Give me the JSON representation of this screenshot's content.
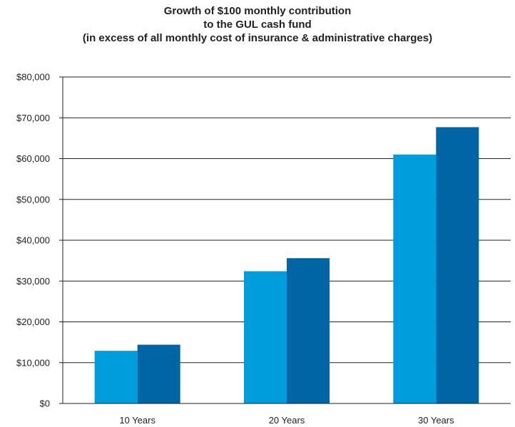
{
  "chart_data": {
    "type": "bar",
    "title_lines": [
      "Growth of $100 monthly contribution",
      "to the GUL cash fund",
      "(in excess of all monthly cost of insurance & administrative charges)"
    ],
    "categories": [
      "10 Years",
      "20 Years",
      "30 Years"
    ],
    "series": [
      {
        "values": [
          12900,
          32400,
          61000
        ],
        "color": "#009ddc"
      },
      {
        "values": [
          14400,
          35600,
          67700
        ],
        "color": "#0065a4"
      }
    ],
    "ylim": [
      0,
      80000
    ],
    "yticks": [
      0,
      10000,
      20000,
      30000,
      40000,
      50000,
      60000,
      70000,
      80000
    ],
    "ytick_labels": [
      "$0",
      "$10,000",
      "$20,000",
      "$30,000",
      "$40,000",
      "$50,000",
      "$60,000",
      "$70,000",
      "$80,000"
    ],
    "grid": true,
    "legend": "none"
  }
}
